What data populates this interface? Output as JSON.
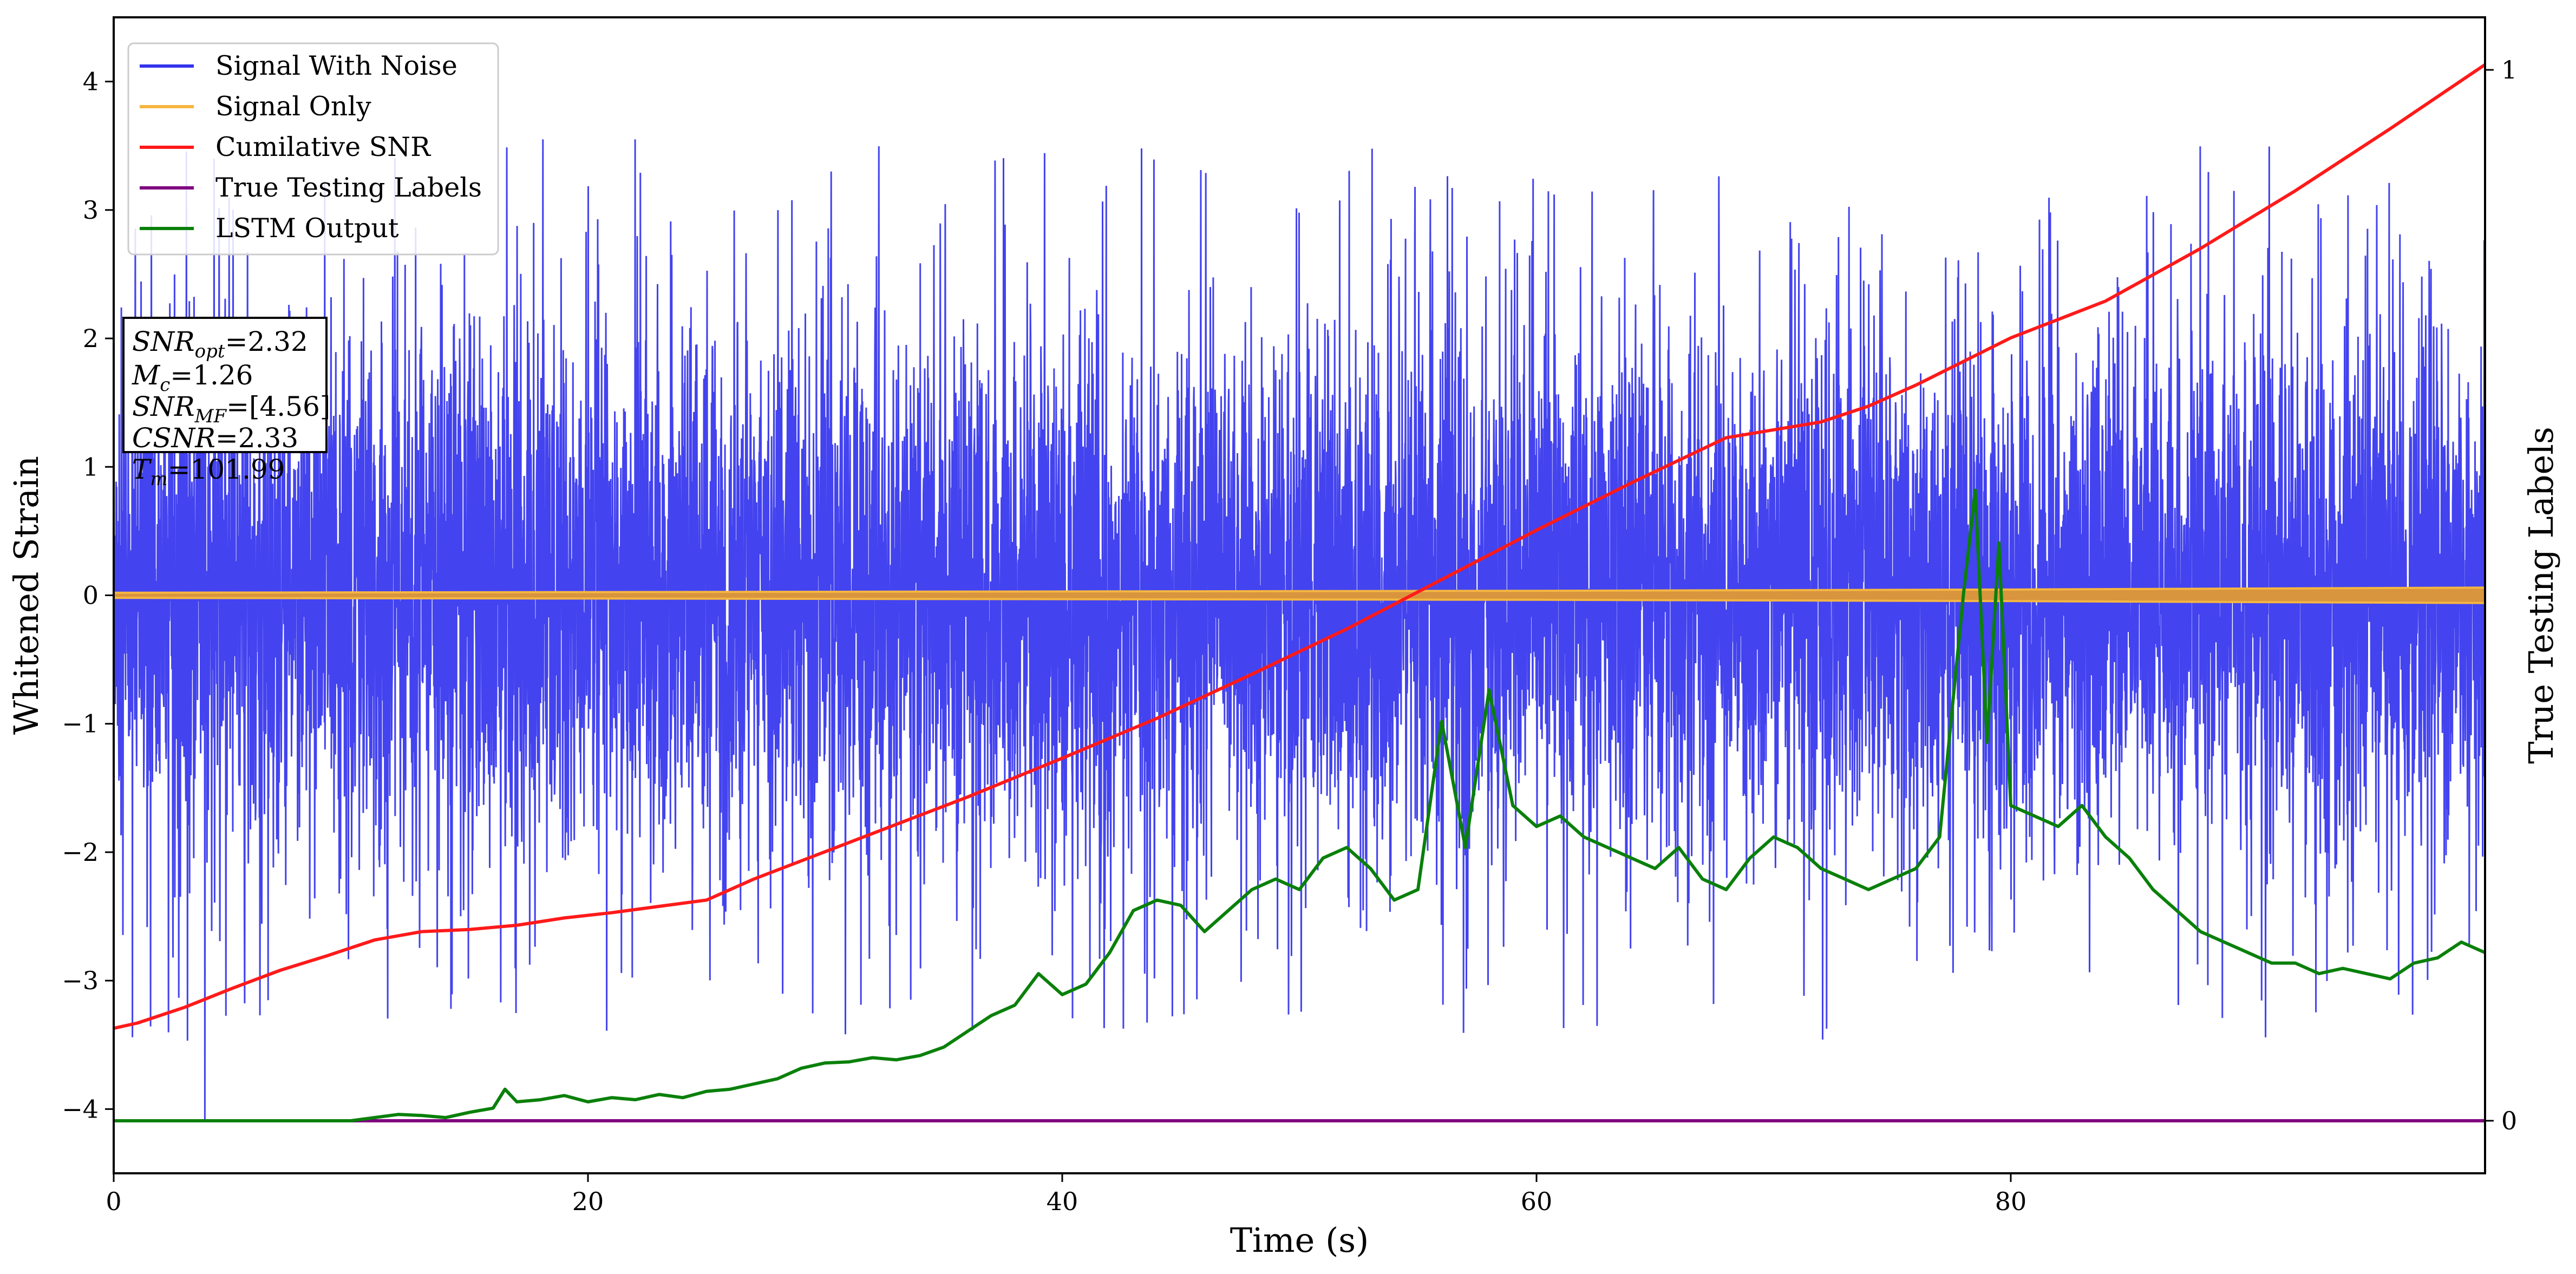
{
  "chart_data": {
    "type": "line",
    "xlabel": "Time (s)",
    "ylabel": "Whitened Strain",
    "y2label": "True Testing Labels",
    "xlim": [
      0,
      100
    ],
    "ylim": [
      -4.5,
      4.5
    ],
    "y2lim": [
      -0.05,
      1.05
    ],
    "xticks": [
      0,
      20,
      40,
      60,
      80
    ],
    "yticks": [
      -4,
      -3,
      -2,
      -1,
      0,
      1,
      2,
      3,
      4
    ],
    "y2ticks": [
      0,
      1
    ],
    "legend_position": "upper-left",
    "grid": false,
    "legend": [
      {
        "label": "Signal With Noise",
        "color": "#3333ee"
      },
      {
        "label": "Signal Only",
        "color": "#f5b640"
      },
      {
        "label": "Cumilative SNR",
        "color": "#ff1a1a"
      },
      {
        "label": "True Testing Labels",
        "color": "#800080"
      },
      {
        "label": "LSTM Output",
        "color": "#0a800a"
      }
    ],
    "info_box": [
      {
        "base": "SNR",
        "sub": "opt",
        "value": "=2.32"
      },
      {
        "base": "M",
        "sub": "c",
        "value": "=1.26"
      },
      {
        "base": "SNR",
        "sub": "MF",
        "value": "=[4.56]"
      },
      {
        "base": "CSNR",
        "sub": "",
        "value": "=2.33"
      },
      {
        "base": "T",
        "sub": "m",
        "value": "=101.99"
      }
    ],
    "series": [
      {
        "name": "Signal With Noise",
        "axis": "left",
        "style": "noise",
        "noise_envelope": {
          "typical_amplitude": 1.6,
          "max_positive": 3.55,
          "min_negative": -4.1
        }
      },
      {
        "name": "Signal Only",
        "axis": "left",
        "style": "band",
        "x": [
          0,
          20,
          40,
          60,
          80,
          100
        ],
        "half_width": [
          0.02,
          0.025,
          0.03,
          0.035,
          0.045,
          0.06
        ]
      },
      {
        "name": "Cumilative SNR",
        "axis": "right",
        "x": [
          0,
          1,
          3,
          5,
          7,
          9,
          11,
          13,
          15,
          17,
          19,
          21,
          23,
          25,
          27,
          30,
          33,
          36,
          40,
          44,
          48,
          52,
          56,
          60,
          64,
          68,
          72,
          74,
          76,
          80,
          84,
          88,
          92,
          96,
          100
        ],
        "y": [
          0.088,
          0.093,
          0.108,
          0.126,
          0.143,
          0.157,
          0.172,
          0.18,
          0.182,
          0.186,
          0.193,
          0.198,
          0.204,
          0.21,
          0.23,
          0.256,
          0.282,
          0.308,
          0.345,
          0.383,
          0.425,
          0.468,
          0.515,
          0.562,
          0.607,
          0.65,
          0.665,
          0.68,
          0.7,
          0.745,
          0.78,
          0.83,
          0.885,
          0.944,
          1.005
        ]
      },
      {
        "name": "True Testing Labels",
        "axis": "right",
        "x": [
          0,
          100
        ],
        "y": [
          0,
          0
        ]
      },
      {
        "name": "LSTM Output",
        "axis": "right",
        "x": [
          0,
          10,
          11,
          12,
          13,
          14,
          15,
          16,
          16.5,
          17,
          18,
          19,
          20,
          21,
          22,
          23,
          24,
          25,
          26,
          27,
          28,
          29,
          30,
          31,
          32,
          33,
          34,
          35,
          36,
          37,
          38,
          39,
          40,
          41,
          42,
          43,
          44,
          45,
          46,
          47,
          48,
          49,
          50,
          51,
          52,
          53,
          54,
          55,
          56,
          57,
          58,
          59,
          60,
          61,
          62,
          63,
          64,
          65,
          66,
          67,
          68,
          69,
          70,
          71,
          72,
          73,
          74,
          75,
          76,
          77,
          78,
          78.5,
          79,
          79.5,
          80,
          81,
          82,
          83,
          84,
          85,
          86,
          87,
          88,
          89,
          90,
          91,
          92,
          93,
          94,
          95,
          96,
          97,
          98,
          99,
          100
        ],
        "y": [
          0,
          0,
          0.003,
          0.006,
          0.005,
          0.003,
          0.008,
          0.012,
          0.03,
          0.018,
          0.02,
          0.024,
          0.018,
          0.022,
          0.02,
          0.025,
          0.022,
          0.028,
          0.03,
          0.035,
          0.04,
          0.05,
          0.055,
          0.056,
          0.06,
          0.058,
          0.062,
          0.07,
          0.085,
          0.1,
          0.11,
          0.14,
          0.12,
          0.13,
          0.16,
          0.2,
          0.21,
          0.205,
          0.18,
          0.2,
          0.22,
          0.23,
          0.22,
          0.25,
          0.26,
          0.24,
          0.21,
          0.22,
          0.38,
          0.26,
          0.41,
          0.3,
          0.28,
          0.29,
          0.27,
          0.26,
          0.25,
          0.24,
          0.26,
          0.23,
          0.22,
          0.25,
          0.27,
          0.26,
          0.24,
          0.23,
          0.22,
          0.23,
          0.24,
          0.27,
          0.5,
          0.6,
          0.36,
          0.55,
          0.3,
          0.29,
          0.28,
          0.3,
          0.27,
          0.25,
          0.22,
          0.2,
          0.18,
          0.17,
          0.16,
          0.15,
          0.15,
          0.14,
          0.145,
          0.14,
          0.135,
          0.15,
          0.155,
          0.17,
          0.16
        ]
      }
    ]
  }
}
